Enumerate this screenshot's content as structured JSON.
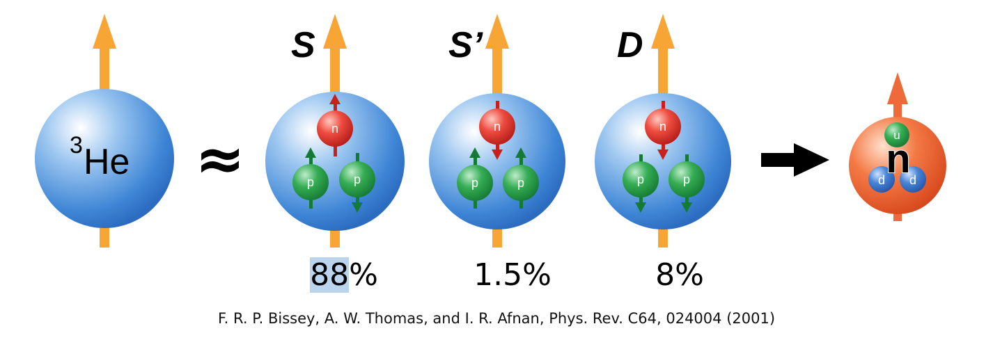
{
  "he3": {
    "mass_number": "3",
    "symbol": "He"
  },
  "approx_symbol": "≈",
  "states": [
    {
      "label": "S",
      "percent": "88%",
      "percent_selected": "88",
      "percent_rest": "%"
    },
    {
      "label": "S’",
      "percent": "1.5%"
    },
    {
      "label": "D",
      "percent": "8%"
    }
  ],
  "particles": {
    "neutron": "n",
    "proton": "p",
    "up_quark": "u",
    "down_quark": "d"
  },
  "citation": "F. R. P. Bissey, A. W. Thomas, and I. R. Afnan, Phys. Rev. C64, 024004 (2001)",
  "colors": {
    "sphere_blue": "#4a90d9",
    "spin_arrow": "#f7a535",
    "neutron_red": "#e5302a",
    "proton_green": "#2a9a47",
    "neutron_orange": "#ee6a3a",
    "quark_blue": "#3a74c8"
  }
}
